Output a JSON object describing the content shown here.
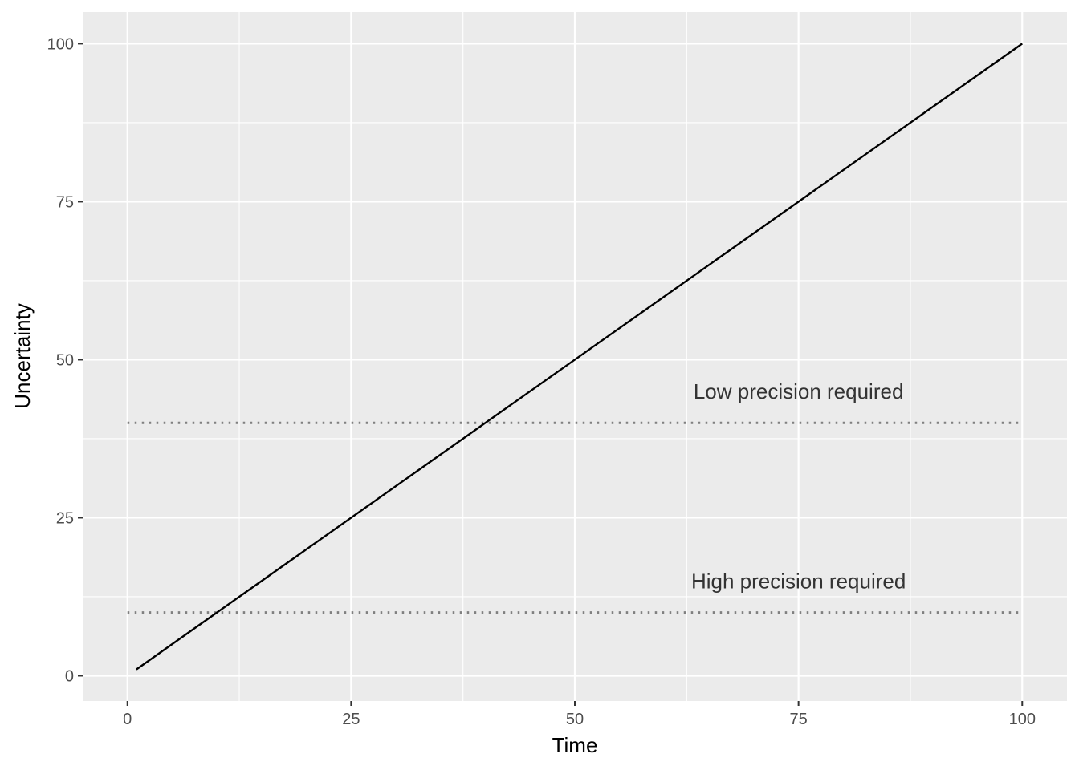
{
  "chart_data": {
    "type": "line",
    "xlabel": "Time",
    "ylabel": "Uncertainty",
    "xlim": [
      -5,
      105
    ],
    "ylim": [
      -4,
      105
    ],
    "x_ticks": [
      0,
      25,
      50,
      75,
      100
    ],
    "y_ticks": [
      0,
      25,
      50,
      75,
      100
    ],
    "x_tick_labels": [
      "0",
      "25",
      "50",
      "75",
      "100"
    ],
    "y_tick_labels": [
      "0",
      "25",
      "50",
      "75",
      "100"
    ],
    "grid": true,
    "series": [
      {
        "x": [
          1,
          100
        ],
        "y": [
          1,
          100
        ]
      }
    ],
    "reference_lines": [
      {
        "y": 40,
        "x": [
          0,
          100
        ],
        "style": "dotted",
        "color": "#808080"
      },
      {
        "y": 10,
        "x": [
          0,
          100
        ],
        "style": "dotted",
        "color": "#808080"
      }
    ],
    "annotations": [
      {
        "text": "Low precision required",
        "x": 75,
        "y": 45
      },
      {
        "text": "High precision required",
        "x": 75,
        "y": 15
      }
    ],
    "colors": {
      "panel_background": "#ebebeb",
      "grid": "#ffffff",
      "line": "#000000",
      "reference": "#808080"
    }
  }
}
